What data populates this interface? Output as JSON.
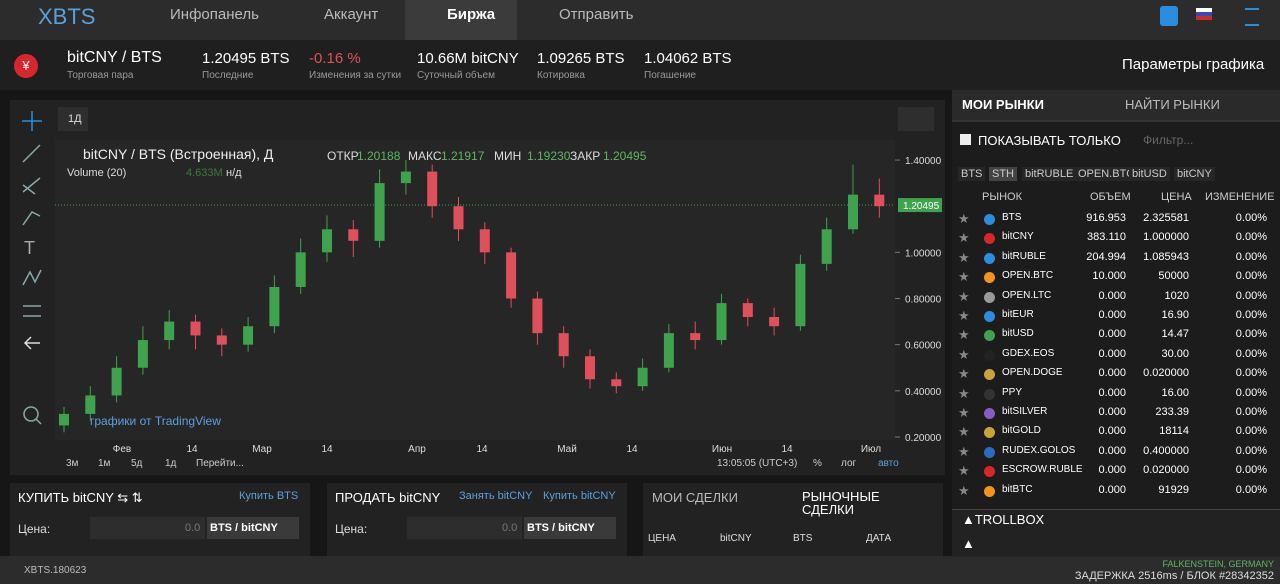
{
  "nav": {
    "logo": "XBTS",
    "items": [
      "Инфопанель",
      "Аккаунт",
      "Биржа",
      "Отправить"
    ]
  },
  "ticker": {
    "pair": "bitCNY / BTS",
    "pair_caption": "Торговая пара",
    "stats": [
      {
        "value": "1.20495 BTS",
        "label": "Последние"
      },
      {
        "value": "-0.16 %",
        "label": "Изменения за сутки"
      },
      {
        "value": "10.66M bitCNY",
        "label": "Суточный объем"
      },
      {
        "value": "1.09265 BTS",
        "label": "Котировка"
      },
      {
        "value": "1.04062 BTS",
        "label": "Погашение"
      }
    ],
    "settings": "Параметры графика"
  },
  "chart_panel": {
    "interval": "1Д",
    "legend_title": "bitCNY / BTS (Встроенная), Д",
    "ohlc": [
      {
        "label": "ОТКР",
        "value": "1.20188"
      },
      {
        "label": "МАКС",
        "value": "1.21917"
      },
      {
        "label": "МИН",
        "value": "1.19230"
      },
      {
        "label": "ЗАКР",
        "value": "1.20495"
      }
    ],
    "volume_label": "Volume (20)",
    "volume_value": "4.633M",
    "volume_na": "н/д",
    "credit": "графики от TradingView",
    "ranges": [
      "3м",
      "1м",
      "5д",
      "1д",
      "Перейти..."
    ],
    "time": "13:05:05 (UTC+3)",
    "options": [
      "%",
      "лог",
      "авто"
    ]
  },
  "chart_data": {
    "type": "candlestick",
    "open": [
      0.25,
      0.3,
      0.38,
      0.5,
      0.62,
      0.7,
      0.64,
      0.6,
      0.68,
      0.85,
      1.0,
      1.1,
      1.05,
      1.3,
      1.35,
      1.2,
      1.1,
      1.0,
      0.8,
      0.65,
      0.55,
      0.45,
      0.42,
      0.5,
      0.65,
      0.62,
      0.78,
      0.72,
      0.68,
      0.95,
      1.1,
      1.25
    ],
    "high": [
      0.33,
      0.42,
      0.55,
      0.68,
      0.75,
      0.73,
      0.67,
      0.72,
      0.9,
      1.06,
      1.16,
      1.14,
      1.36,
      1.4,
      1.38,
      1.24,
      1.13,
      1.02,
      0.83,
      0.68,
      0.58,
      0.48,
      0.54,
      0.69,
      0.7,
      0.82,
      0.8,
      0.76,
      0.99,
      1.15,
      1.38,
      1.32
    ],
    "low": [
      0.22,
      0.27,
      0.35,
      0.47,
      0.58,
      0.58,
      0.55,
      0.57,
      0.65,
      0.82,
      0.96,
      0.98,
      1.02,
      1.25,
      1.15,
      1.05,
      0.95,
      0.76,
      0.6,
      0.5,
      0.41,
      0.39,
      0.4,
      0.48,
      0.58,
      0.6,
      0.68,
      0.64,
      0.66,
      0.92,
      1.08,
      1.15
    ],
    "close": [
      0.3,
      0.38,
      0.5,
      0.62,
      0.7,
      0.64,
      0.6,
      0.68,
      0.85,
      1.0,
      1.1,
      1.05,
      1.3,
      1.35,
      1.2,
      1.1,
      1.0,
      0.8,
      0.65,
      0.55,
      0.45,
      0.42,
      0.5,
      0.65,
      0.62,
      0.78,
      0.72,
      0.68,
      0.95,
      1.1,
      1.25,
      1.2
    ],
    "ylim": [
      0.19,
      1.45
    ],
    "yticks": [
      {
        "value": 0.2,
        "label": "0.20000"
      },
      {
        "value": 0.4,
        "label": "0.40000"
      },
      {
        "value": 0.6,
        "label": "0.60000"
      },
      {
        "value": 0.8,
        "label": "0.80000"
      },
      {
        "value": 1.0,
        "label": "1.00000"
      },
      {
        "value": 1.4,
        "label": "1.40000"
      }
    ],
    "last_price": {
      "value": 1.20495,
      "label": "1.20495"
    },
    "x_tick_labels": [
      "Фев",
      "14",
      "Мар",
      "14",
      "Апр",
      "14",
      "Май",
      "14",
      "Июн",
      "14",
      "Июл"
    ],
    "up_color": "#3fa34d",
    "down_color": "#e0505a"
  },
  "markets": {
    "tabs": [
      "МОИ РЫНКИ",
      "НАЙТИ РЫНКИ"
    ],
    "filter_label": "ПОКАЗЫВАТЬ ТОЛЬКО",
    "filter_placeholder": "Фильтр...",
    "chips": [
      "BTS",
      "STH",
      "bitRUBLE",
      "OPEN.BTC",
      "bitUSD",
      "bitCNY"
    ],
    "columns": [
      "РЫНОК",
      "ОБЪЕМ",
      "ЦЕНА",
      "ИЗМЕНЕНИЕ"
    ],
    "rows": [
      [
        "BTS",
        "916.953",
        "2.325581",
        "0.00%"
      ],
      [
        "bitCNY",
        "383.110",
        "1.000000",
        "0.00%"
      ],
      [
        "bitRUBLE",
        "204.994",
        "1.085943",
        "0.00%"
      ],
      [
        "OPEN.BTC",
        "10.000",
        "50000",
        "0.00%"
      ],
      [
        "OPEN.LTC",
        "0.000",
        "1020",
        "0.00%"
      ],
      [
        "bitEUR",
        "0.000",
        "16.90",
        "0.00%"
      ],
      [
        "bitUSD",
        "0.000",
        "14.47",
        "0.00%"
      ],
      [
        "GDEX.EOS",
        "0.000",
        "30.00",
        "0.00%"
      ],
      [
        "OPEN.DOGE",
        "0.000",
        "0.020000",
        "0.00%"
      ],
      [
        "PPY",
        "0.000",
        "16.00",
        "0.00%"
      ],
      [
        "bitSILVER",
        "0.000",
        "233.39",
        "0.00%"
      ],
      [
        "bitGOLD",
        "0.000",
        "18114",
        "0.00%"
      ],
      [
        "RUDEX.GOLOS",
        "0.000",
        "0.400000",
        "0.00%"
      ],
      [
        "ESCROW.RUBLE",
        "0.000",
        "0.020000",
        "0.00%"
      ],
      [
        "bitBTC",
        "0.000",
        "91929",
        "0.00%"
      ]
    ],
    "trollbox": "▲TROLLBOX",
    "trollbox_toggle": "▲"
  },
  "buy": {
    "title": "КУПИТЬ bitCNY ⇆ ⇅",
    "link": "Купить BTS",
    "price_label": "Цена:",
    "price": "0.0",
    "unit": "BTS / bitCNY"
  },
  "sell": {
    "title": "ПРОДАТЬ bitCNY",
    "links": [
      "Занять bitCNY",
      "Купить bitCNY"
    ],
    "price_label": "Цена:",
    "price": "0.0",
    "unit": "BTS / bitCNY"
  },
  "trades": {
    "tabs": [
      "МОИ СДЕЛКИ",
      "РЫНОЧНЫЕ СДЕЛКИ"
    ],
    "columns": [
      "ЦЕНА",
      "bitCNY",
      "BTS",
      "ДАТА"
    ]
  },
  "footer": {
    "version": "XBTS.180623",
    "location": "FALKENSTEIN, GERMANY",
    "latency": "ЗАДЕРЖКА 2516ms / БЛОК #28342352"
  }
}
